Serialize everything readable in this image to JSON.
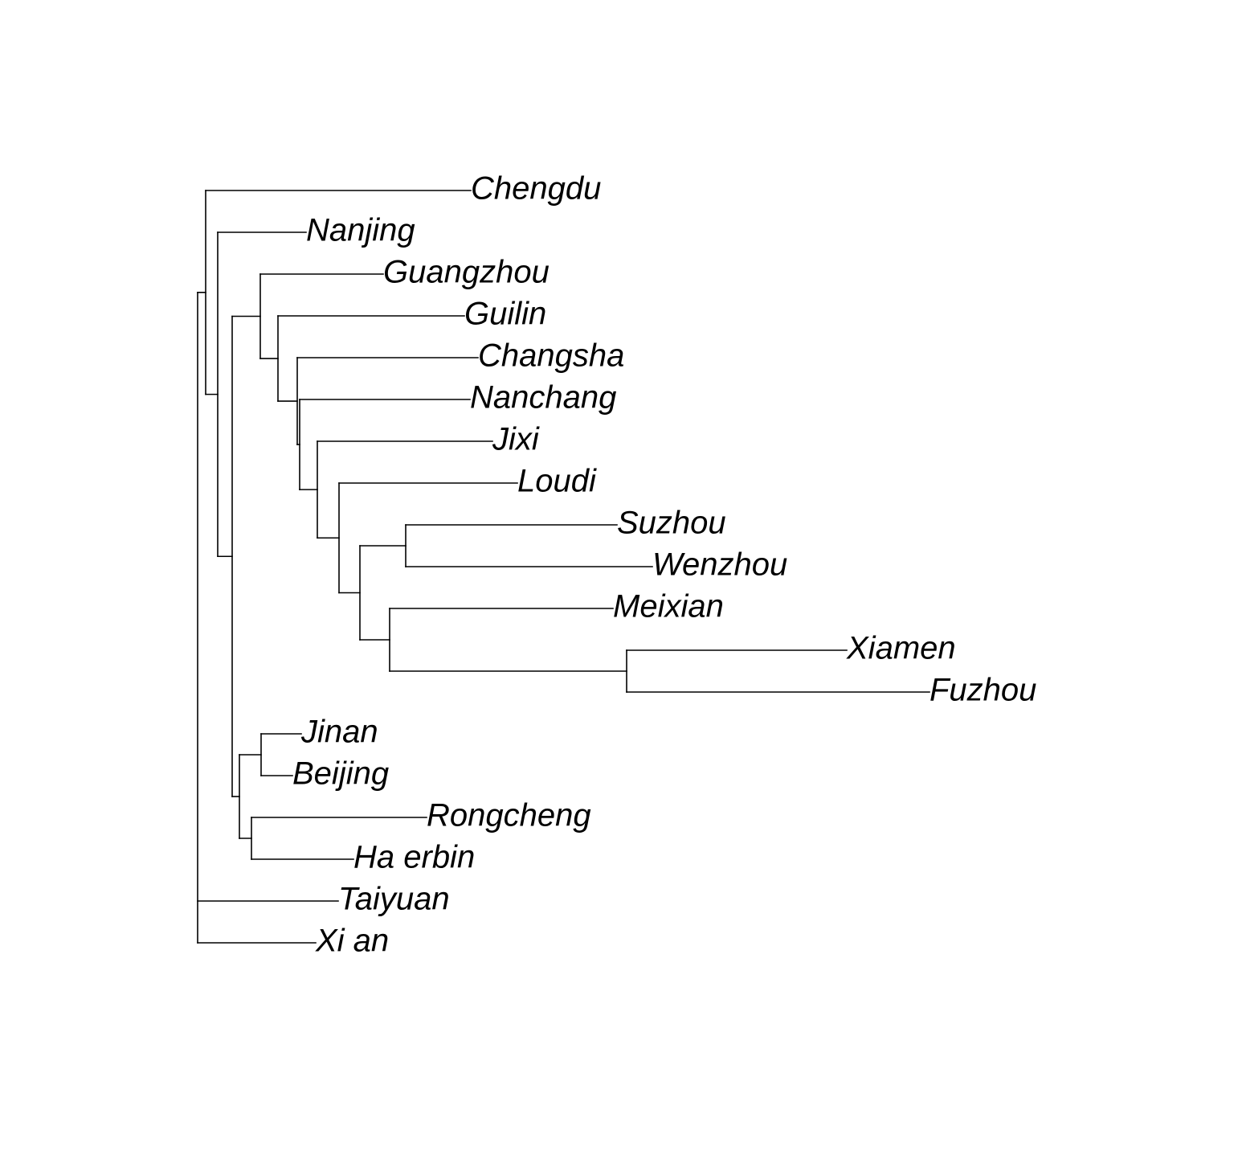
{
  "tree": {
    "type": "phylogram",
    "line_color": "#000000",
    "leaves": [
      "Chengdu",
      "Nanjing",
      "Guangzhou",
      "Guilin",
      "Changsha",
      "Nanchang",
      "Jixi",
      "Loudi",
      "Suzhou",
      "Wenzhou",
      "Meixian",
      "Xiamen",
      "Fuzhou",
      "Jinan",
      "Beijing",
      "Rongcheng",
      "Ha erbin",
      "Taiyuan",
      "Xi an"
    ],
    "root": {
      "children": [
        {
          "children": [
            {
              "leaf": 0,
              "length": 0.33
            },
            {
              "children": [
                {
                  "leaf": 1,
                  "length": 0.11
                },
                {
                  "children": [
                    {
                      "children": [
                        {
                          "leaf": 2,
                          "length": 0.153
                        },
                        {
                          "children": [
                            {
                              "leaf": 3,
                              "length": 0.232
                            },
                            {
                              "children": [
                                {
                                  "leaf": 4,
                                  "length": 0.225
                                },
                                {
                                  "children": [
                                    {
                                      "leaf": 5,
                                      "length": 0.212
                                    },
                                    {
                                      "children": [
                                        {
                                          "leaf": 6,
                                          "length": 0.218
                                        },
                                        {
                                          "children": [
                                            {
                                              "leaf": 7,
                                              "length": 0.222
                                            },
                                            {
                                              "children": [
                                                {
                                                  "children": [
                                                    {
                                                      "leaf": 8,
                                                      "length": 0.263
                                                    },
                                                    {
                                                      "leaf": 9,
                                                      "length": 0.307
                                                    }
                                                  ],
                                                  "length": 0.057
                                                },
                                                {
                                                  "children": [
                                                    {
                                                      "leaf": 10,
                                                      "length": 0.278
                                                    },
                                                    {
                                                      "children": [
                                                        {
                                                          "leaf": 11,
                                                          "length": 0.274
                                                        },
                                                        {
                                                          "leaf": 12,
                                                          "length": 0.377
                                                        }
                                                      ],
                                                      "length": 0.295
                                                    }
                                                  ],
                                                  "length": 0.037
                                                }
                                              ],
                                              "length": 0.026
                                            }
                                          ],
                                          "length": 0.027
                                        }
                                      ],
                                      "length": 0.022
                                    }
                                  ],
                                  "length": 0.003
                                }
                              ],
                              "length": 0.024
                            }
                          ],
                          "length": 0.022
                        }
                      ],
                      "length": 0.035
                    },
                    {
                      "children": [
                        {
                          "children": [
                            {
                              "leaf": 13,
                              "length": 0.05
                            },
                            {
                              "leaf": 14,
                              "length": 0.039
                            }
                          ],
                          "length": 0.027
                        },
                        {
                          "children": [
                            {
                              "leaf": 15,
                              "length": 0.218
                            },
                            {
                              "leaf": 16,
                              "length": 0.127
                            }
                          ],
                          "length": 0.015
                        }
                      ],
                      "length": 0.009
                    }
                  ],
                  "length": 0.018
                }
              ],
              "length": 0.015
            }
          ],
          "length": 0.01
        },
        {
          "leaf": 17,
          "length": 0.175
        },
        {
          "leaf": 18,
          "length": 0.147
        }
      ]
    }
  }
}
